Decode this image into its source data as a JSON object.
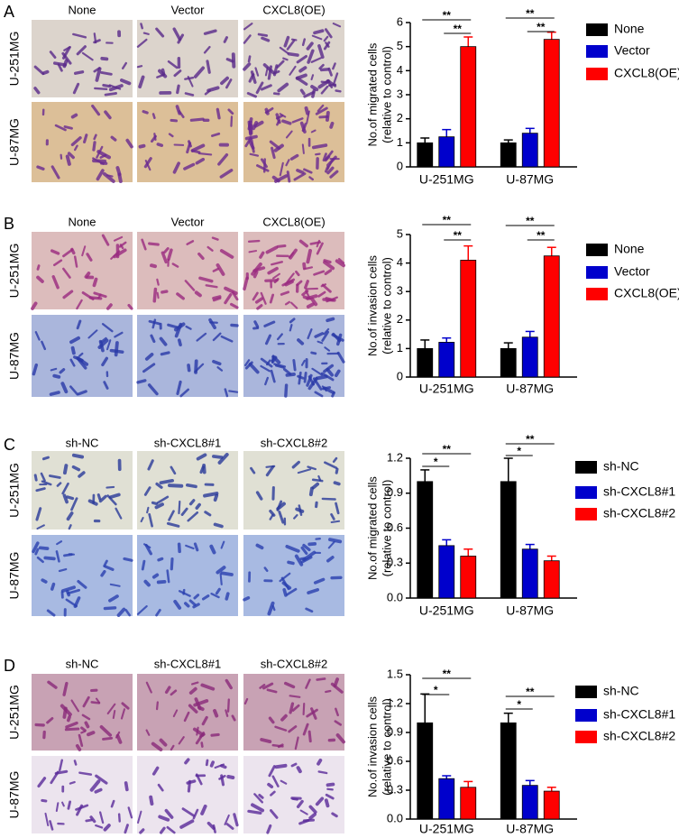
{
  "panels": [
    {
      "label": "A",
      "columns": [
        "None",
        "Vector",
        "CXCL8(OE)"
      ],
      "rows": [
        "U-251MG",
        "U-87MG"
      ]
    },
    {
      "label": "B",
      "columns": [
        "None",
        "Vector",
        "CXCL8(OE)"
      ],
      "rows": [
        "U-251MG",
        "U-87MG"
      ]
    },
    {
      "label": "C",
      "columns": [
        "sh-NC",
        "sh-CXCL8#1",
        "sh-CXCL8#2"
      ],
      "rows": [
        "U-251MG",
        "U-87MG"
      ]
    },
    {
      "label": "D",
      "columns": [
        "sh-NC",
        "sh-CXCL8#1",
        "sh-CXCL8#2"
      ],
      "rows": [
        "U-251MG",
        "U-87MG"
      ]
    }
  ],
  "chart_data": [
    {
      "type": "bar",
      "ylabel": [
        "No.of migrated cells",
        "(relative to control)"
      ],
      "categories": [
        "U-251MG",
        "U-87MG"
      ],
      "ylim": [
        0,
        6
      ],
      "yticks": [
        0,
        1,
        2,
        3,
        4,
        5,
        6
      ],
      "series": [
        {
          "name": "None",
          "color": "#000000",
          "values": [
            1.0,
            1.0
          ],
          "errors": [
            0.2,
            0.12
          ]
        },
        {
          "name": "Vector",
          "color": "#0000cc",
          "values": [
            1.25,
            1.4
          ],
          "errors": [
            0.3,
            0.2
          ]
        },
        {
          "name": "CXCL8(OE)",
          "color": "#ff0000",
          "values": [
            5.0,
            5.3
          ],
          "errors": [
            0.4,
            0.3
          ]
        }
      ],
      "significance": [
        "**",
        "**",
        "**",
        "**"
      ]
    },
    {
      "type": "bar",
      "ylabel": [
        "No.of invasion cells",
        "(relative to control)"
      ],
      "categories": [
        "U-251MG",
        "U-87MG"
      ],
      "ylim": [
        0,
        5
      ],
      "yticks": [
        0,
        1,
        2,
        3,
        4,
        5
      ],
      "series": [
        {
          "name": "None",
          "color": "#000000",
          "values": [
            1.0,
            1.0
          ],
          "errors": [
            0.3,
            0.2
          ]
        },
        {
          "name": "Vector",
          "color": "#0000cc",
          "values": [
            1.22,
            1.4
          ],
          "errors": [
            0.15,
            0.2
          ]
        },
        {
          "name": "CXCL8(OE)",
          "color": "#ff0000",
          "values": [
            4.1,
            4.25
          ],
          "errors": [
            0.5,
            0.3
          ]
        }
      ],
      "significance": [
        "**",
        "**",
        "**",
        "**"
      ]
    },
    {
      "type": "bar",
      "ylabel": [
        "No.of migrated cells",
        "(relative to control)"
      ],
      "categories": [
        "U-251MG",
        "U-87MG"
      ],
      "ylim": [
        0,
        1.2
      ],
      "yticks": [
        {
          "value": 0,
          "label": "0.0"
        },
        0.3,
        0.6,
        0.9,
        1.2
      ],
      "series": [
        {
          "name": "sh-NC",
          "color": "#000000",
          "values": [
            1.0,
            1.0
          ],
          "errors": [
            0.1,
            0.2
          ]
        },
        {
          "name": "sh-CXCL8#1",
          "color": "#0000cc",
          "values": [
            0.45,
            0.42
          ],
          "errors": [
            0.05,
            0.04
          ]
        },
        {
          "name": "sh-CXCL8#2",
          "color": "#ff0000",
          "values": [
            0.36,
            0.32
          ],
          "errors": [
            0.06,
            0.04
          ]
        }
      ],
      "significance": [
        "*",
        "**",
        "*",
        "**"
      ]
    },
    {
      "type": "bar",
      "ylabel": [
        "No.of invasion cells",
        "(relative to control)"
      ],
      "categories": [
        "U-251MG",
        "U-87MG"
      ],
      "ylim": [
        0,
        1.5
      ],
      "yticks": [
        {
          "value": 0,
          "label": "0.0"
        },
        0.3,
        0.6,
        0.9,
        1.2,
        1.5
      ],
      "series": [
        {
          "name": "sh-NC",
          "color": "#000000",
          "values": [
            1.0,
            1.0
          ],
          "errors": [
            0.3,
            0.1
          ]
        },
        {
          "name": "sh-CXCL8#1",
          "color": "#0000cc",
          "values": [
            0.42,
            0.35
          ],
          "errors": [
            0.03,
            0.05
          ]
        },
        {
          "name": "sh-CXCL8#2",
          "color": "#ff0000",
          "values": [
            0.33,
            0.29
          ],
          "errors": [
            0.06,
            0.04
          ]
        }
      ],
      "significance": [
        "*",
        "**",
        "*",
        "**"
      ]
    }
  ]
}
